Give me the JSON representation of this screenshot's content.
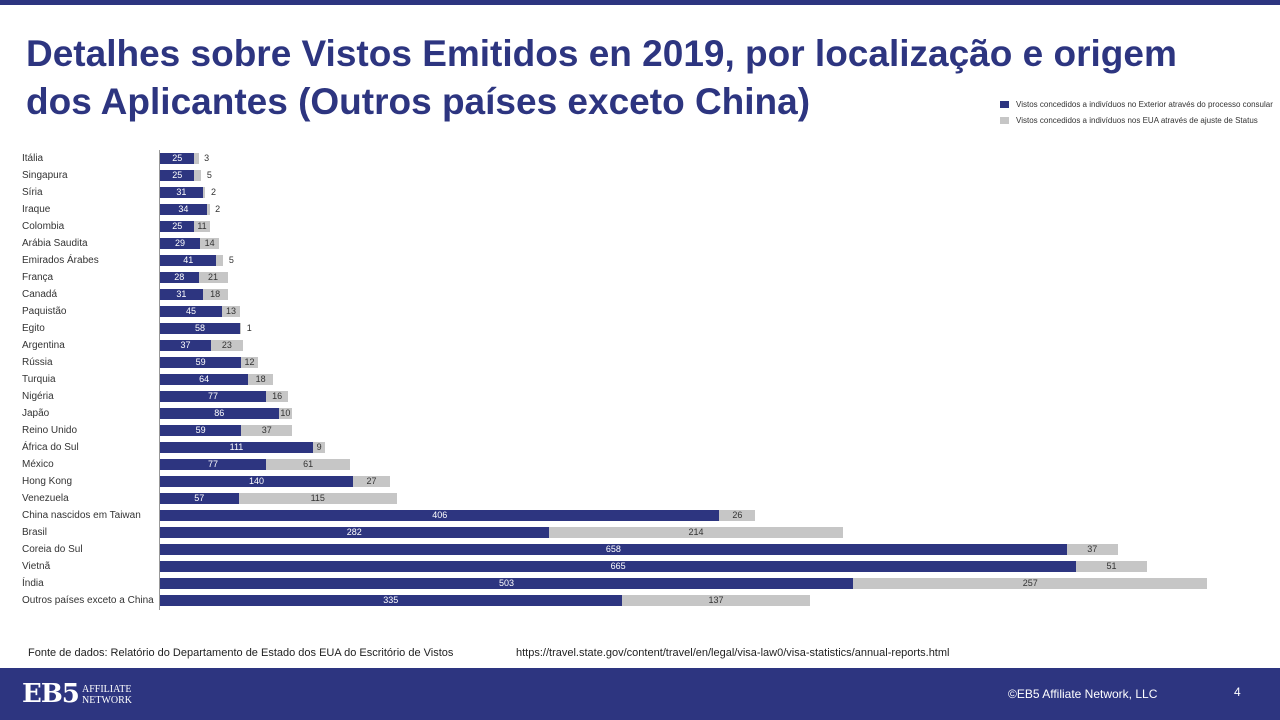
{
  "header": {
    "title": "Detalhes sobre Vistos Emitidos en 2019, por localização e origem dos Aplicantes (Outros países exceto China)"
  },
  "colors": {
    "accent": "#2d3580",
    "consular": "#2d3580",
    "status": "#c6c6c6"
  },
  "chart_data": {
    "type": "bar",
    "orientation": "horizontal",
    "stacked": true,
    "categories": [
      "Itália",
      "Singapura",
      "Síria",
      "Iraque",
      "Colombia",
      "Arábia Saudita",
      "Emirados Árabes",
      "França",
      "Canadá",
      "Paquistão",
      "Egito",
      "Argentina",
      "Rússia",
      "Turquia",
      "Nigéria",
      "Japão",
      "Reino Unido",
      "África do Sul",
      "México",
      "Hong Kong",
      "Venezuela",
      "China nascidos em Taiwan",
      "Brasil",
      "Coreia do Sul",
      "Vietnã",
      "Índia",
      "Outros países exceto a China"
    ],
    "series": [
      {
        "name": "Vistos concedidos a indivíduos no Exterior através do processo consular",
        "color": "#2d3580",
        "values": [
          25,
          25,
          31,
          34,
          25,
          29,
          41,
          28,
          31,
          45,
          58,
          37,
          59,
          64,
          77,
          86,
          59,
          111,
          77,
          140,
          57,
          406,
          282,
          658,
          665,
          503,
          335
        ]
      },
      {
        "name": "Vistos concedidos a indivíduos nos EUA através de ajuste de Status",
        "color": "#c6c6c6",
        "values": [
          3,
          5,
          2,
          2,
          11,
          14,
          5,
          21,
          18,
          13,
          1,
          23,
          12,
          18,
          16,
          10,
          37,
          9,
          61,
          27,
          115,
          26,
          214,
          37,
          51,
          257,
          137
        ]
      }
    ],
    "legend_position": "top-right",
    "grid": false
  },
  "footer": {
    "source": "Fonte de dados: Relatório do Departamento de Estado dos EUA do Escritório de Vistos",
    "url": "https://travel.state.gov/content/travel/en/legal/visa-law0/visa-statistics/annual-reports.html",
    "copyright": "©EB5 Affiliate Network, LLC",
    "page_number": "4",
    "logo_main": "EB5",
    "logo_line1": "AFFILIATE",
    "logo_line2": "NETWORK"
  }
}
